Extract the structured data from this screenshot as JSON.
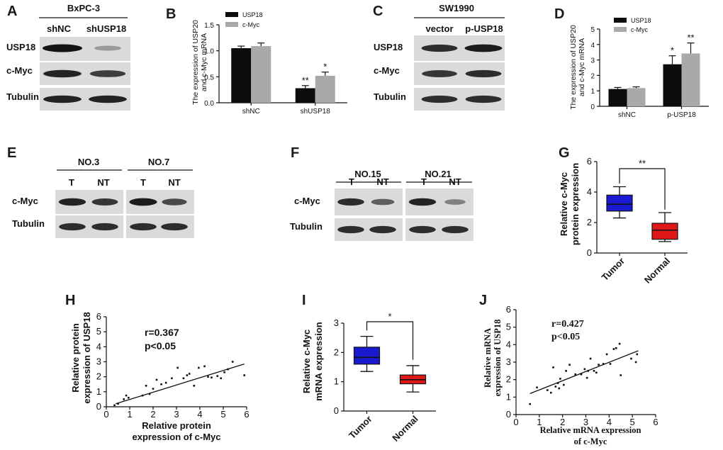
{
  "colors": {
    "black_bar": "#0c0c0c",
    "gray_bar": "#a9a9a9",
    "tumor_box": "#1a1ad0",
    "normal_box": "#e01818",
    "blot_bg": "#dadada",
    "band": "#141414"
  },
  "panel_labels": {
    "A": "A",
    "B": "B",
    "C": "C",
    "D": "D",
    "E": "E",
    "F": "F",
    "G": "G",
    "H": "H",
    "I": "I",
    "J": "J"
  },
  "blots": {
    "A": {
      "title": "BxPC-3",
      "lanes": [
        "shNC",
        "shUSP18"
      ],
      "rows": [
        {
          "label": "USP18",
          "intensity": [
            1.0,
            0.2
          ]
        },
        {
          "label": "c-Myc",
          "intensity": [
            0.9,
            0.75
          ]
        },
        {
          "label": "Tubulin",
          "intensity": [
            0.9,
            0.9
          ]
        }
      ]
    },
    "C": {
      "title": "SW1990",
      "lanes": [
        "vector",
        "p-USP18"
      ],
      "rows": [
        {
          "label": "USP18",
          "intensity": [
            0.85,
            0.95
          ]
        },
        {
          "label": "c-Myc",
          "intensity": [
            0.8,
            0.85
          ]
        },
        {
          "label": "Tubulin",
          "intensity": [
            0.85,
            0.85
          ]
        }
      ]
    },
    "E": {
      "groups": [
        {
          "title": "NO.3",
          "lanes": [
            "T",
            "NT"
          ]
        },
        {
          "title": "NO.7",
          "lanes": [
            "T",
            "NT"
          ]
        }
      ],
      "rows": [
        {
          "label": "c-Myc",
          "intensity": [
            0.9,
            0.8,
            0.95,
            0.7
          ]
        },
        {
          "label": "Tubulin",
          "intensity": [
            0.85,
            0.85,
            0.85,
            0.85
          ]
        }
      ]
    },
    "F": {
      "groups": [
        {
          "title": "NO.15",
          "lanes": [
            "T",
            "NT"
          ]
        },
        {
          "title": "NO.21",
          "lanes": [
            "T",
            "NT"
          ]
        }
      ],
      "rows": [
        {
          "label": "c-Myc",
          "intensity": [
            0.85,
            0.55,
            0.9,
            0.35
          ]
        },
        {
          "label": "Tubulin",
          "intensity": [
            0.85,
            0.85,
            0.85,
            0.85
          ]
        }
      ]
    }
  },
  "chart_data": [
    {
      "panel": "B",
      "type": "bar",
      "title": "",
      "categories": [
        "shNC",
        "shUSP18"
      ],
      "series": [
        {
          "name": "USP18",
          "values": [
            1.05,
            0.28
          ],
          "errors": [
            0.04,
            0.05
          ]
        },
        {
          "name": "c-Myc",
          "values": [
            1.09,
            0.52
          ],
          "errors": [
            0.06,
            0.07
          ]
        }
      ],
      "significance": [
        [
          "",
          ""
        ],
        [
          "**",
          "*"
        ]
      ],
      "ylabel": "The expression of USP20 and c-Myc mRNA",
      "ylabel_lines": [
        "The expression of USP20",
        "and c-Myc mRNA"
      ],
      "ylim": [
        0,
        1.5
      ],
      "yticks": [
        "0.0",
        "0.5",
        "1.0",
        "1.5"
      ],
      "legend": "top-left"
    },
    {
      "panel": "D",
      "type": "bar",
      "title": "",
      "categories": [
        "shNC",
        "p-USP18"
      ],
      "series": [
        {
          "name": "USP18",
          "values": [
            1.12,
            2.72
          ],
          "errors": [
            0.1,
            0.55
          ]
        },
        {
          "name": "c-Myc",
          "values": [
            1.18,
            3.42
          ],
          "errors": [
            0.08,
            0.68
          ]
        }
      ],
      "significance": [
        [
          "",
          ""
        ],
        [
          "*",
          "**"
        ]
      ],
      "ylabel": "The expression of USP20 and c-Myc mRNA",
      "ylabel_lines": [
        "The expression of USP20",
        "and c-Myc mRNA"
      ],
      "ylim": [
        0,
        5
      ],
      "yticks": [
        "0",
        "1",
        "2",
        "3",
        "4",
        "5"
      ],
      "legend": "top-left"
    },
    {
      "panel": "G",
      "type": "box",
      "title": "",
      "categories": [
        "Tumor",
        "Normal"
      ],
      "boxes": [
        {
          "min": 2.3,
          "q1": 2.75,
          "median": 3.2,
          "q3": 3.8,
          "max": 4.35
        },
        {
          "min": 0.75,
          "q1": 0.9,
          "median": 1.5,
          "q3": 1.95,
          "max": 2.65
        }
      ],
      "significance": "**",
      "ylabel": "Relative c-Myc protein expression",
      "ylabel_lines": [
        "Relative c-Myc",
        "protein expression"
      ],
      "ylim": [
        0,
        6
      ],
      "yticks": [
        "0",
        "2",
        "4",
        "6"
      ]
    },
    {
      "panel": "I",
      "type": "box",
      "title": "",
      "categories": [
        "Tumor",
        "Normal"
      ],
      "boxes": [
        {
          "min": 1.35,
          "q1": 1.6,
          "median": 1.83,
          "q3": 2.18,
          "max": 2.55
        },
        {
          "min": 0.65,
          "q1": 0.93,
          "median": 1.07,
          "q3": 1.23,
          "max": 1.55
        }
      ],
      "significance": "*",
      "ylabel": "Relative c-Myc mRNA expression",
      "ylabel_lines": [
        "Relative c-Myc",
        "mRNA expression"
      ],
      "ylim": [
        0,
        3
      ],
      "yticks": [
        "0",
        "1",
        "2",
        "3"
      ]
    },
    {
      "panel": "H",
      "type": "scatter",
      "title": "",
      "xlabel": "Relative protein expression of c-Myc",
      "xlabel_lines": [
        "Relative protein",
        "expression of c-Myc"
      ],
      "ylabel": "Relative protein expression of USP18",
      "ylabel_lines": [
        "Relative protein",
        "expression of USP18"
      ],
      "xlim": [
        0,
        6
      ],
      "ylim": [
        0,
        6
      ],
      "xticks": [
        "0",
        "1",
        "2",
        "3",
        "4",
        "5",
        "6"
      ],
      "yticks": [
        "0",
        "1",
        "2",
        "3",
        "4",
        "5",
        "6"
      ],
      "annotations": [
        "r=0.367",
        "p<0.05"
      ],
      "fit": {
        "x": [
          0.4,
          5.9
        ],
        "y": [
          0.2,
          2.85
        ]
      },
      "points": [
        [
          0.35,
          0.1
        ],
        [
          0.5,
          0.2
        ],
        [
          0.75,
          0.5
        ],
        [
          0.85,
          0.75
        ],
        [
          0.95,
          0.6
        ],
        [
          1.55,
          0.75
        ],
        [
          1.7,
          1.4
        ],
        [
          1.85,
          0.85
        ],
        [
          2.0,
          1.2
        ],
        [
          2.15,
          1.8
        ],
        [
          2.35,
          1.5
        ],
        [
          2.55,
          1.6
        ],
        [
          2.8,
          1.9
        ],
        [
          3.05,
          2.6
        ],
        [
          3.3,
          1.9
        ],
        [
          3.45,
          2.1
        ],
        [
          3.55,
          2.2
        ],
        [
          3.75,
          1.4
        ],
        [
          3.95,
          2.6
        ],
        [
          4.2,
          2.7
        ],
        [
          4.35,
          2.0
        ],
        [
          4.5,
          1.95
        ],
        [
          4.75,
          2.05
        ],
        [
          4.9,
          1.9
        ],
        [
          5.05,
          2.3
        ],
        [
          5.2,
          2.5
        ],
        [
          5.4,
          3.0
        ],
        [
          5.9,
          2.1
        ]
      ]
    },
    {
      "panel": "J",
      "type": "scatter",
      "title": "",
      "xlabel": "Relative mRNA expression of c-Myc",
      "xlabel_lines": [
        "Relative mRNA expression",
        "of c-Myc"
      ],
      "ylabel": "Relative mRNA expression of USP18",
      "ylabel_lines": [
        "Relative mRNA",
        "expression of USP18"
      ],
      "xlim": [
        0,
        6
      ],
      "ylim": [
        0,
        6
      ],
      "xticks": [
        "0",
        "1",
        "2",
        "3",
        "4",
        "5",
        "6"
      ],
      "yticks": [
        "0",
        "1",
        "2",
        "3",
        "4",
        "5",
        "6"
      ],
      "annotations": [
        "r=0.427",
        "p<0.05"
      ],
      "fit": {
        "x": [
          0.6,
          5.25
        ],
        "y": [
          1.2,
          3.65
        ]
      },
      "points": [
        [
          0.6,
          0.6
        ],
        [
          0.9,
          1.55
        ],
        [
          1.35,
          1.4
        ],
        [
          1.5,
          1.25
        ],
        [
          1.6,
          2.7
        ],
        [
          1.7,
          1.6
        ],
        [
          1.8,
          1.8
        ],
        [
          1.85,
          1.5
        ],
        [
          1.9,
          2.05
        ],
        [
          2.05,
          1.7
        ],
        [
          2.15,
          2.5
        ],
        [
          2.3,
          2.85
        ],
        [
          2.55,
          2.3
        ],
        [
          2.8,
          2.3
        ],
        [
          2.95,
          2.6
        ],
        [
          3.05,
          2.1
        ],
        [
          3.1,
          2.5
        ],
        [
          3.2,
          3.2
        ],
        [
          3.35,
          2.5
        ],
        [
          3.45,
          2.4
        ],
        [
          3.55,
          2.85
        ],
        [
          3.75,
          2.9
        ],
        [
          3.9,
          3.45
        ],
        [
          4.05,
          2.9
        ],
        [
          4.2,
          3.75
        ],
        [
          4.3,
          3.8
        ],
        [
          4.45,
          4.05
        ],
        [
          4.5,
          2.25
        ],
        [
          4.95,
          3.2
        ],
        [
          5.15,
          3.0
        ],
        [
          5.2,
          3.45
        ]
      ]
    }
  ]
}
